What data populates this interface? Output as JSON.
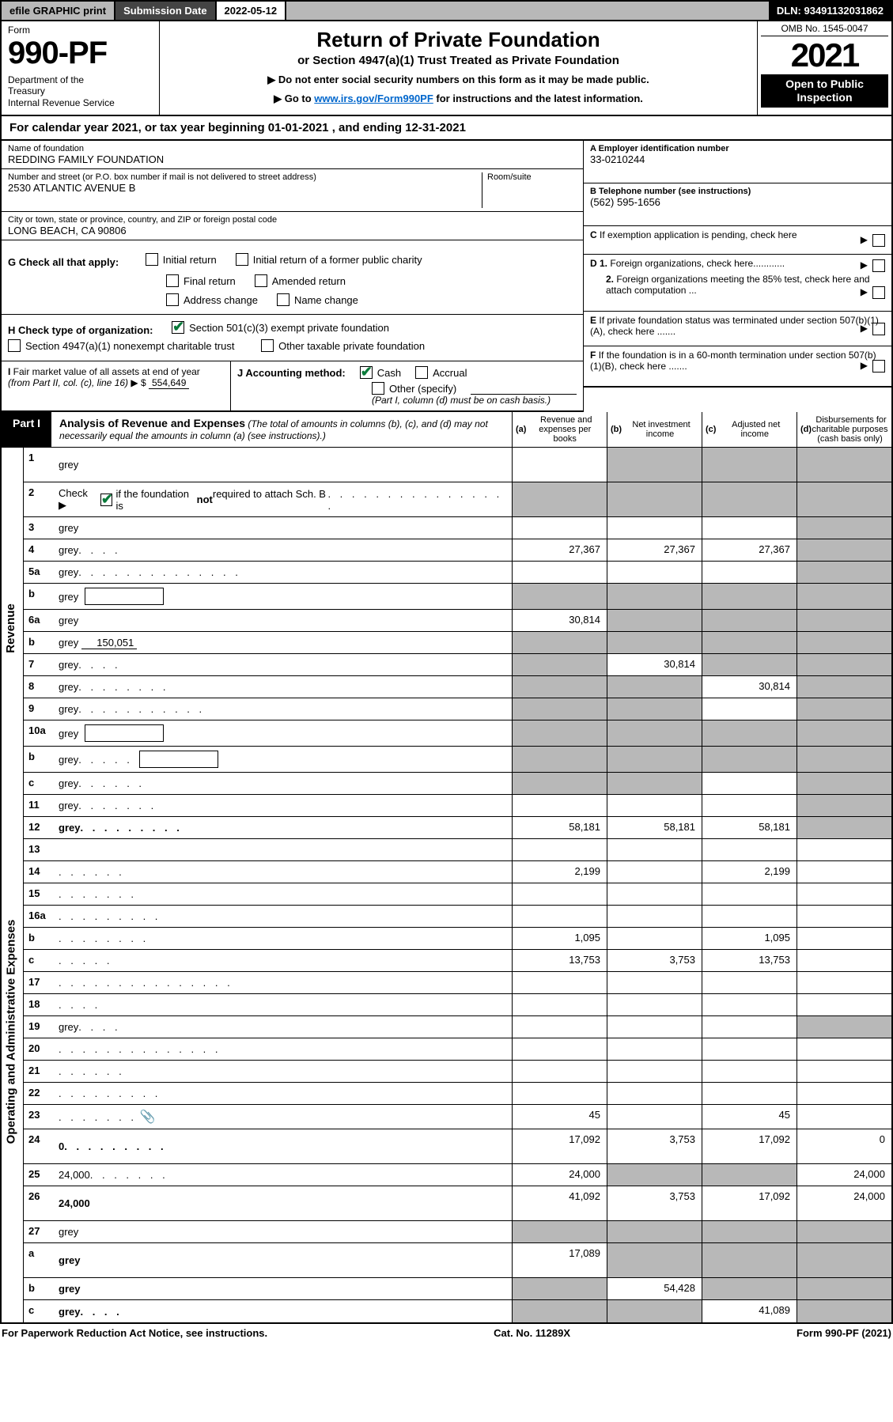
{
  "topbar": {
    "efile": "efile GRAPHIC print",
    "subdate_label": "Submission Date",
    "subdate_value": "2022-05-12",
    "dln": "DLN: 93491132031862"
  },
  "header": {
    "form_label": "Form",
    "form_number": "990-PF",
    "dept": "Department of the Treasury\nInternal Revenue Service",
    "title": "Return of Private Foundation",
    "subtitle": "or Section 4947(a)(1) Trust Treated as Private Foundation",
    "instr1": "▶ Do not enter social security numbers on this form as it may be made public.",
    "instr2_pre": "▶ Go to ",
    "instr2_link": "www.irs.gov/Form990PF",
    "instr2_post": " for instructions and the latest information.",
    "omb": "OMB No. 1545-0047",
    "year": "2021",
    "open": "Open to Public Inspection"
  },
  "calyear": "For calendar year 2021, or tax year beginning 01-01-2021                       , and ending 12-31-2021",
  "info": {
    "name_label": "Name of foundation",
    "name_value": "REDDING FAMILY FOUNDATION",
    "addr_label": "Number and street (or P.O. box number if mail is not delivered to street address)",
    "addr_value": "2530 ATLANTIC AVENUE B",
    "room_label": "Room/suite",
    "city_label": "City or town, state or province, country, and ZIP or foreign postal code",
    "city_value": "LONG BEACH, CA  90806",
    "a_label": "A Employer identification number",
    "a_value": "33-0210244",
    "b_label": "B Telephone number (see instructions)",
    "b_value": "(562) 595-1656",
    "c_label": "C If exemption application is pending, check here",
    "d1_label": "D 1. Foreign organizations, check here............",
    "d2_label": "2. Foreign organizations meeting the 85% test, check here and attach computation ...",
    "e_label": "E  If private foundation status was terminated under section 507(b)(1)(A), check here .......",
    "f_label": "F  If the foundation is in a 60-month termination under section 507(b)(1)(B), check here .......",
    "g_label": "G Check all that apply:",
    "g_opts": {
      "initial": "Initial return",
      "initial_former": "Initial return of a former public charity",
      "final": "Final return",
      "amended": "Amended return",
      "address": "Address change",
      "name": "Name change"
    },
    "h_label": "H Check type of organization:",
    "h_501c3": "Section 501(c)(3) exempt private foundation",
    "h_4947": "Section 4947(a)(1) nonexempt charitable trust",
    "h_other_taxable": "Other taxable private foundation",
    "i_label": "I Fair market value of all assets at end of year (from Part II, col. (c), line 16)",
    "i_prefix": "▶ $",
    "i_value": "554,649",
    "j_label": "J Accounting method:",
    "j_cash": "Cash",
    "j_accrual": "Accrual",
    "j_other": "Other (specify)",
    "j_note": "(Part I, column (d) must be on cash basis.)"
  },
  "part1": {
    "label": "Part I",
    "title": "Analysis of Revenue and Expenses",
    "sub": " (The total of amounts in columns (b), (c), and (d) may not necessarily equal the amounts in column (a) (see instructions).)",
    "col_a": "(a)  Revenue and expenses per books",
    "col_b": "(b)  Net investment income",
    "col_c": "(c)  Adjusted net income",
    "col_d": "(d)  Disbursements for charitable purposes (cash basis only)"
  },
  "side": {
    "revenue": "Revenue",
    "opex": "Operating and Administrative Expenses"
  },
  "rows": [
    {
      "n": "1",
      "d": "grey",
      "a": "",
      "b": "grey",
      "c": "grey",
      "tall": true
    },
    {
      "n": "2",
      "d": "grey",
      "a": "grey",
      "b": "grey",
      "c": "grey",
      "tall": true,
      "hascheck": true,
      "dots": ". . . . . . . . . . . . . . . ."
    },
    {
      "n": "3",
      "d": "grey",
      "a": "",
      "b": "",
      "c": ""
    },
    {
      "n": "4",
      "d": "grey",
      "a": "27,367",
      "b": "27,367",
      "c": "27,367",
      "dots": ". . . ."
    },
    {
      "n": "5a",
      "d": "grey",
      "a": "",
      "b": "",
      "c": "",
      "dots": ". . . . . . . . . . . . . ."
    },
    {
      "n": "b",
      "d": "grey",
      "a": "grey",
      "b": "grey",
      "c": "grey",
      "hasbox": true
    },
    {
      "n": "6a",
      "d": "grey",
      "a": "30,814",
      "b": "grey",
      "c": "grey"
    },
    {
      "n": "b",
      "d": "grey",
      "a": "grey",
      "b": "grey",
      "c": "grey",
      "fill": "150,051"
    },
    {
      "n": "7",
      "d": "grey",
      "a": "grey",
      "b": "30,814",
      "c": "grey",
      "dots": ". . . ."
    },
    {
      "n": "8",
      "d": "grey",
      "a": "grey",
      "b": "grey",
      "c": "30,814",
      "dots": ". . . . . . . ."
    },
    {
      "n": "9",
      "d": "grey",
      "a": "grey",
      "b": "grey",
      "c": "",
      "dots": ". . . . . . . . . . ."
    },
    {
      "n": "10a",
      "d": "grey",
      "a": "grey",
      "b": "grey",
      "c": "grey",
      "hasbox": true
    },
    {
      "n": "b",
      "d": "grey",
      "a": "grey",
      "b": "grey",
      "c": "grey",
      "hasbox": true,
      "dots": ". . . . ."
    },
    {
      "n": "c",
      "d": "grey",
      "a": "grey",
      "b": "grey",
      "c": "",
      "dots": ". . . . . ."
    },
    {
      "n": "11",
      "d": "grey",
      "a": "",
      "b": "",
      "c": "",
      "dots": ". . . . . . ."
    },
    {
      "n": "12",
      "d": "grey",
      "a": "58,181",
      "b": "58,181",
      "c": "58,181",
      "bold": true,
      "dots": ". . . . . . . . ."
    },
    {
      "n": "13",
      "d": "",
      "a": "",
      "b": "",
      "c": ""
    },
    {
      "n": "14",
      "d": "",
      "a": "2,199",
      "b": "",
      "c": "2,199",
      "dots": ". . . . . ."
    },
    {
      "n": "15",
      "d": "",
      "a": "",
      "b": "",
      "c": "",
      "dots": ". . . . . . ."
    },
    {
      "n": "16a",
      "d": "",
      "a": "",
      "b": "",
      "c": "",
      "dots": ". . . . . . . . ."
    },
    {
      "n": "b",
      "d": "",
      "a": "1,095",
      "b": "",
      "c": "1,095",
      "dots": ". . . . . . . ."
    },
    {
      "n": "c",
      "d": "",
      "a": "13,753",
      "b": "3,753",
      "c": "13,753",
      "dots": ". . . . ."
    },
    {
      "n": "17",
      "d": "",
      "a": "",
      "b": "",
      "c": "",
      "dots": ". . . . . . . . . . . . . . ."
    },
    {
      "n": "18",
      "d": "",
      "a": "",
      "b": "",
      "c": "",
      "dots": ". . . ."
    },
    {
      "n": "19",
      "d": "grey",
      "a": "",
      "b": "",
      "c": "",
      "dots": ". . . ."
    },
    {
      "n": "20",
      "d": "",
      "a": "",
      "b": "",
      "c": "",
      "dots": ". . . . . . . . . . . . . ."
    },
    {
      "n": "21",
      "d": "",
      "a": "",
      "b": "",
      "c": "",
      "dots": ". . . . . ."
    },
    {
      "n": "22",
      "d": "",
      "a": "",
      "b": "",
      "c": "",
      "dots": ". . . . . . . . ."
    },
    {
      "n": "23",
      "d": "",
      "a": "45",
      "b": "",
      "c": "45",
      "dots": ". . . . . . .",
      "clip": true
    },
    {
      "n": "24",
      "d": "0",
      "a": "17,092",
      "b": "3,753",
      "c": "17,092",
      "bold": true,
      "dots": ". . . . . . . . .",
      "tall": true
    },
    {
      "n": "25",
      "d": "24,000",
      "a": "24,000",
      "b": "grey",
      "c": "grey",
      "dots": ". . . . . . ."
    },
    {
      "n": "26",
      "d": "24,000",
      "a": "41,092",
      "b": "3,753",
      "c": "17,092",
      "bold": true,
      "tall": true
    },
    {
      "n": "27",
      "d": "grey",
      "a": "grey",
      "b": "grey",
      "c": "grey"
    },
    {
      "n": "a",
      "d": "grey",
      "a": "17,089",
      "b": "grey",
      "c": "grey",
      "bold": true,
      "tall": true
    },
    {
      "n": "b",
      "d": "grey",
      "a": "grey",
      "b": "54,428",
      "c": "grey",
      "bold": true
    },
    {
      "n": "c",
      "d": "grey",
      "a": "grey",
      "b": "grey",
      "c": "41,089",
      "bold": true,
      "dots": ". . . ."
    }
  ],
  "footer": {
    "left": "For Paperwork Reduction Act Notice, see instructions.",
    "center": "Cat. No. 11289X",
    "right": "Form 990-PF (2021)"
  },
  "colors": {
    "grey": "#b8b8b8",
    "black": "#000000",
    "link": "#0066cc",
    "check": "#0a7a3a"
  }
}
